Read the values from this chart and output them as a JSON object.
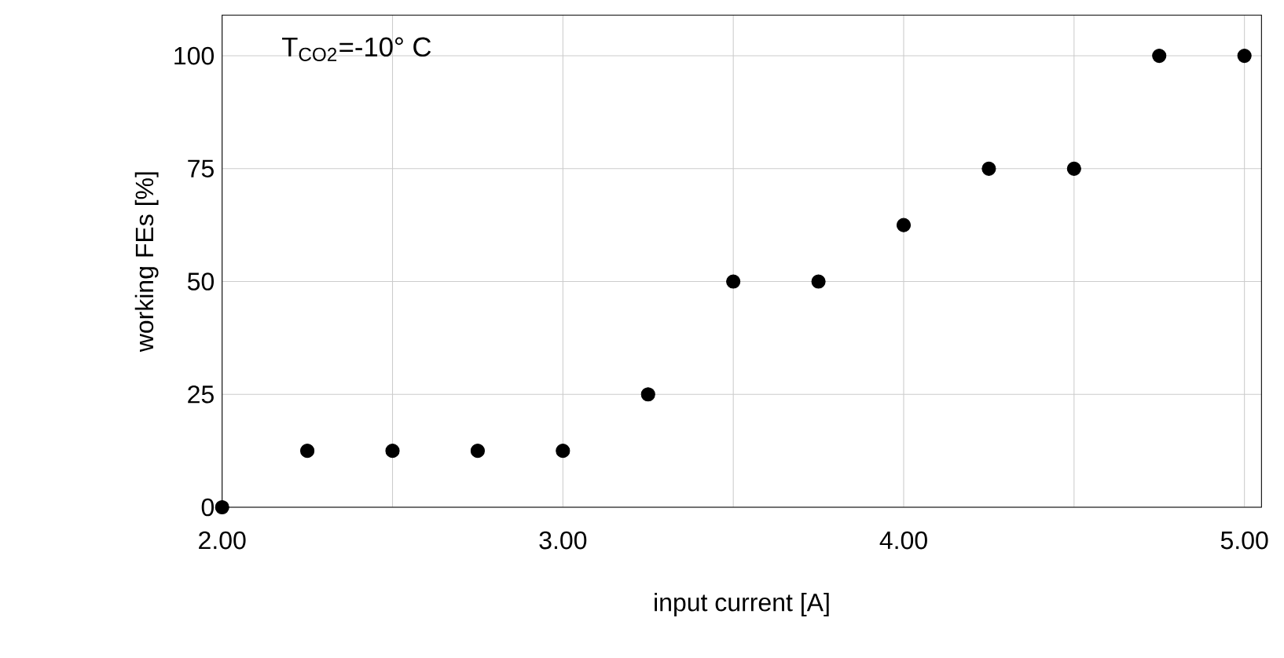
{
  "chart_data": {
    "type": "scatter",
    "xlabel": "input current [A]",
    "ylabel": "working FEs [%]",
    "annotations": [
      "T$_{CO2}$=-10° C"
    ],
    "x": [
      2.0,
      2.25,
      2.5,
      2.75,
      3.0,
      3.25,
      3.5,
      3.75,
      4.0,
      4.25,
      4.5,
      4.75,
      5.0
    ],
    "values": [
      0,
      12.5,
      12.5,
      12.5,
      12.5,
      25,
      50,
      50,
      62.5,
      75,
      75,
      100,
      100
    ],
    "color": "#000000",
    "marker": "circle",
    "xlim": [
      2.0,
      5.05
    ],
    "ylim": [
      0,
      109
    ],
    "xticks": [
      {
        "value": 2.0,
        "label": "2.00"
      },
      {
        "value": 2.5,
        "label": null
      },
      {
        "value": 3.0,
        "label": "3.00"
      },
      {
        "value": 3.5,
        "label": null
      },
      {
        "value": 4.0,
        "label": "4.00"
      },
      {
        "value": 4.5,
        "label": null
      },
      {
        "value": 5.0,
        "label": "5.00"
      }
    ],
    "yticks": [
      0,
      25,
      50,
      75,
      100
    ],
    "grid": true
  }
}
